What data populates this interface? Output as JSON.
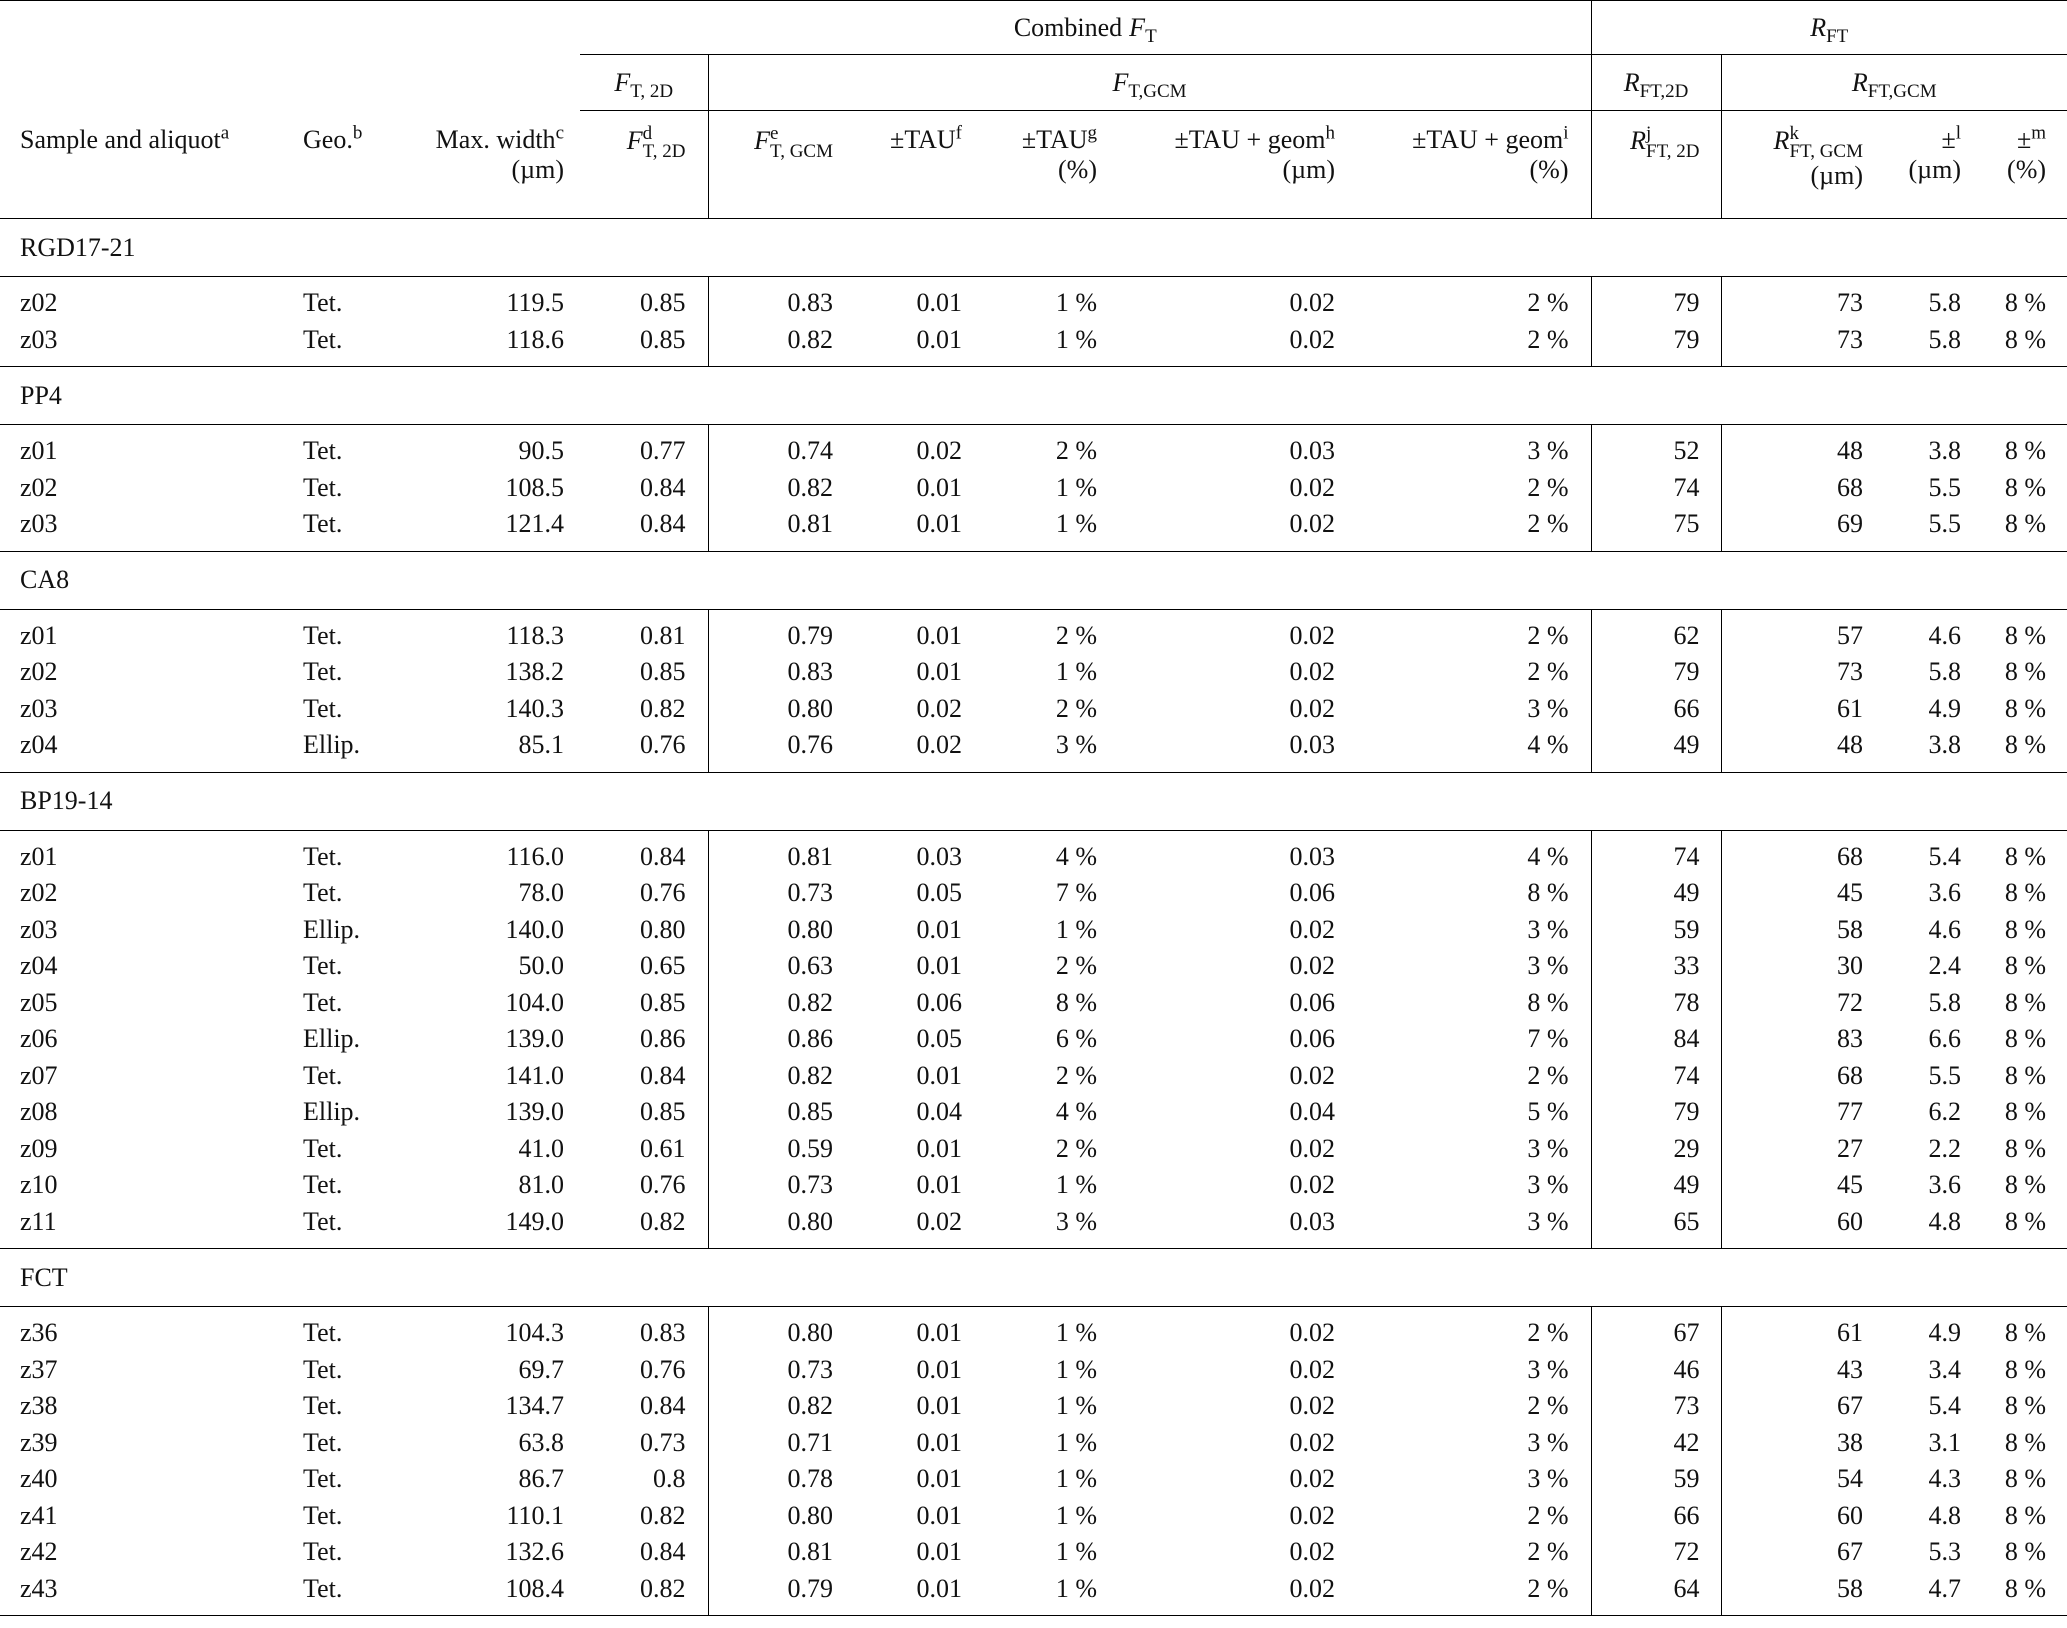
{
  "table": {
    "spanners_top": [
      {
        "text": "Combined",
        "var": "F",
        "sub": "T"
      },
      {
        "var": "R",
        "sub": "FT"
      }
    ],
    "spanners_mid": [
      {
        "var": "F",
        "sub": "T, 2D"
      },
      {
        "var": "F",
        "sub": "T,GCM"
      },
      {
        "var": "R",
        "sub": "FT,2D"
      },
      {
        "var": "R",
        "sub": "FT,GCM"
      }
    ],
    "columns": [
      {
        "text": "Sample and aliquot",
        "sup": "a"
      },
      {
        "text": "Geo.",
        "sup": "b"
      },
      {
        "text": "Max. width",
        "sup": "c",
        "unit": "(µm)"
      },
      {
        "var": "F",
        "sub": "T, 2D",
        "sup": "d"
      },
      {
        "var": "F",
        "sub": "T, GCM",
        "sup": "e"
      },
      {
        "text": "±TAU",
        "sup": "f"
      },
      {
        "text": "±TAU",
        "sup": "g",
        "unit": "(%)"
      },
      {
        "text": "±TAU + geom",
        "sup": "h",
        "unit": "(µm)"
      },
      {
        "text": "±TAU + geom",
        "sup": "i",
        "unit": "(%)"
      },
      {
        "var": "R",
        "sub": "FT, 2D",
        "sup": "j"
      },
      {
        "var": "R",
        "sub": "FT, GCM",
        "sup": "k",
        "unit": "(µm)"
      },
      {
        "text": "±",
        "sup": "l",
        "unit": "(µm)"
      },
      {
        "text": "±",
        "sup": "m",
        "unit": "(%)"
      }
    ],
    "groups": [
      {
        "name": "RGD17-21",
        "rows": [
          [
            "z02",
            "Tet.",
            "119.5",
            "0.85",
            "0.83",
            "0.01",
            "1 %",
            "0.02",
            "2 %",
            "79",
            "73",
            "5.8",
            "8 %"
          ],
          [
            "z03",
            "Tet.",
            "118.6",
            "0.85",
            "0.82",
            "0.01",
            "1 %",
            "0.02",
            "2 %",
            "79",
            "73",
            "5.8",
            "8 %"
          ]
        ]
      },
      {
        "name": "PP4",
        "rows": [
          [
            "z01",
            "Tet.",
            "90.5",
            "0.77",
            "0.74",
            "0.02",
            "2 %",
            "0.03",
            "3 %",
            "52",
            "48",
            "3.8",
            "8 %"
          ],
          [
            "z02",
            "Tet.",
            "108.5",
            "0.84",
            "0.82",
            "0.01",
            "1 %",
            "0.02",
            "2 %",
            "74",
            "68",
            "5.5",
            "8 %"
          ],
          [
            "z03",
            "Tet.",
            "121.4",
            "0.84",
            "0.81",
            "0.01",
            "1 %",
            "0.02",
            "2 %",
            "75",
            "69",
            "5.5",
            "8 %"
          ]
        ]
      },
      {
        "name": "CA8",
        "rows": [
          [
            "z01",
            "Tet.",
            "118.3",
            "0.81",
            "0.79",
            "0.01",
            "2 %",
            "0.02",
            "2 %",
            "62",
            "57",
            "4.6",
            "8 %"
          ],
          [
            "z02",
            "Tet.",
            "138.2",
            "0.85",
            "0.83",
            "0.01",
            "1 %",
            "0.02",
            "2 %",
            "79",
            "73",
            "5.8",
            "8 %"
          ],
          [
            "z03",
            "Tet.",
            "140.3",
            "0.82",
            "0.80",
            "0.02",
            "2 %",
            "0.02",
            "3 %",
            "66",
            "61",
            "4.9",
            "8 %"
          ],
          [
            "z04",
            "Ellip.",
            "85.1",
            "0.76",
            "0.76",
            "0.02",
            "3 %",
            "0.03",
            "4 %",
            "49",
            "48",
            "3.8",
            "8 %"
          ]
        ]
      },
      {
        "name": "BP19-14",
        "rows": [
          [
            "z01",
            "Tet.",
            "116.0",
            "0.84",
            "0.81",
            "0.03",
            "4 %",
            "0.03",
            "4 %",
            "74",
            "68",
            "5.4",
            "8 %"
          ],
          [
            "z02",
            "Tet.",
            "78.0",
            "0.76",
            "0.73",
            "0.05",
            "7 %",
            "0.06",
            "8 %",
            "49",
            "45",
            "3.6",
            "8 %"
          ],
          [
            "z03",
            "Ellip.",
            "140.0",
            "0.80",
            "0.80",
            "0.01",
            "1 %",
            "0.02",
            "3 %",
            "59",
            "58",
            "4.6",
            "8 %"
          ],
          [
            "z04",
            "Tet.",
            "50.0",
            "0.65",
            "0.63",
            "0.01",
            "2 %",
            "0.02",
            "3 %",
            "33",
            "30",
            "2.4",
            "8 %"
          ],
          [
            "z05",
            "Tet.",
            "104.0",
            "0.85",
            "0.82",
            "0.06",
            "8 %",
            "0.06",
            "8 %",
            "78",
            "72",
            "5.8",
            "8 %"
          ],
          [
            "z06",
            "Ellip.",
            "139.0",
            "0.86",
            "0.86",
            "0.05",
            "6 %",
            "0.06",
            "7 %",
            "84",
            "83",
            "6.6",
            "8 %"
          ],
          [
            "z07",
            "Tet.",
            "141.0",
            "0.84",
            "0.82",
            "0.01",
            "2 %",
            "0.02",
            "2 %",
            "74",
            "68",
            "5.5",
            "8 %"
          ],
          [
            "z08",
            "Ellip.",
            "139.0",
            "0.85",
            "0.85",
            "0.04",
            "4 %",
            "0.04",
            "5 %",
            "79",
            "77",
            "6.2",
            "8 %"
          ],
          [
            "z09",
            "Tet.",
            "41.0",
            "0.61",
            "0.59",
            "0.01",
            "2 %",
            "0.02",
            "3 %",
            "29",
            "27",
            "2.2",
            "8 %"
          ],
          [
            "z10",
            "Tet.",
            "81.0",
            "0.76",
            "0.73",
            "0.01",
            "1 %",
            "0.02",
            "3 %",
            "49",
            "45",
            "3.6",
            "8 %"
          ],
          [
            "z11",
            "Tet.",
            "149.0",
            "0.82",
            "0.80",
            "0.02",
            "3 %",
            "0.03",
            "3 %",
            "65",
            "60",
            "4.8",
            "8 %"
          ]
        ]
      },
      {
        "name": "FCT",
        "rows": [
          [
            "z36",
            "Tet.",
            "104.3",
            "0.83",
            "0.80",
            "0.01",
            "1 %",
            "0.02",
            "2 %",
            "67",
            "61",
            "4.9",
            "8 %"
          ],
          [
            "z37",
            "Tet.",
            "69.7",
            "0.76",
            "0.73",
            "0.01",
            "1 %",
            "0.02",
            "3 %",
            "46",
            "43",
            "3.4",
            "8 %"
          ],
          [
            "z38",
            "Tet.",
            "134.7",
            "0.84",
            "0.82",
            "0.01",
            "1 %",
            "0.02",
            "2 %",
            "73",
            "67",
            "5.4",
            "8 %"
          ],
          [
            "z39",
            "Tet.",
            "63.8",
            "0.73",
            "0.71",
            "0.01",
            "1 %",
            "0.02",
            "3 %",
            "42",
            "38",
            "3.1",
            "8 %"
          ],
          [
            "z40",
            "Tet.",
            "86.7",
            "0.8",
            "0.78",
            "0.01",
            "1 %",
            "0.02",
            "3 %",
            "59",
            "54",
            "4.3",
            "8 %"
          ],
          [
            "z41",
            "Tet.",
            "110.1",
            "0.82",
            "0.80",
            "0.01",
            "1 %",
            "0.02",
            "2 %",
            "66",
            "60",
            "4.8",
            "8 %"
          ],
          [
            "z42",
            "Tet.",
            "132.6",
            "0.84",
            "0.81",
            "0.01",
            "1 %",
            "0.02",
            "2 %",
            "72",
            "67",
            "5.3",
            "8 %"
          ],
          [
            "z43",
            "Tet.",
            "108.4",
            "0.82",
            "0.79",
            "0.01",
            "1 %",
            "0.02",
            "2 %",
            "64",
            "58",
            "4.7",
            "8 %"
          ]
        ]
      }
    ]
  }
}
